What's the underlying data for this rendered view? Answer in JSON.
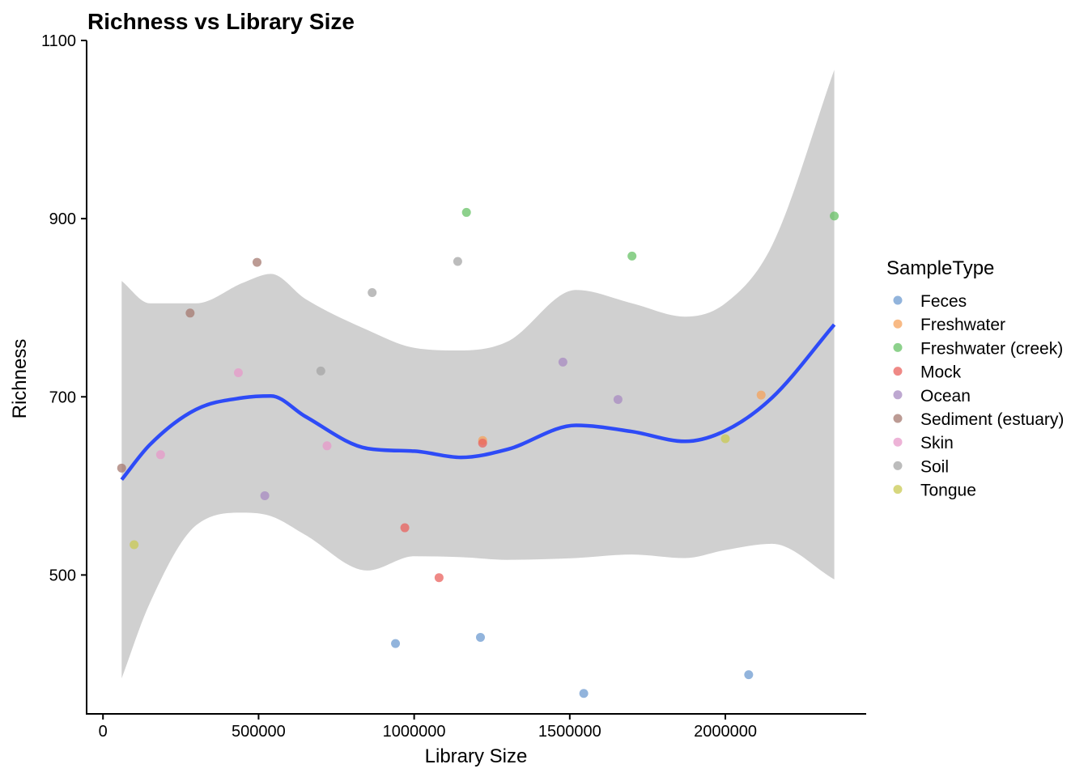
{
  "chart_data": {
    "type": "scatter",
    "title": "Richness vs Library Size",
    "xlabel": "Library Size",
    "ylabel": "Richness",
    "xlim": [
      -50000,
      2450000
    ],
    "ylim": [
      345,
      1100
    ],
    "x_ticks": [
      0,
      500000,
      1000000,
      1500000,
      2000000
    ],
    "x_tick_labels": [
      "0",
      "500000",
      "1000000",
      "1500000",
      "2000000"
    ],
    "y_ticks": [
      500,
      700,
      900,
      1100
    ],
    "y_tick_labels": [
      "500",
      "700",
      "900",
      "1100"
    ],
    "grid": false,
    "legend": {
      "title": "SampleType",
      "position": "right",
      "entries": [
        {
          "name": "Feces",
          "color": "#6E9BD0"
        },
        {
          "name": "Freshwater",
          "color": "#F5A35C"
        },
        {
          "name": "Freshwater (creek)",
          "color": "#67C266"
        },
        {
          "name": "Mock",
          "color": "#E9625E"
        },
        {
          "name": "Ocean",
          "color": "#A88BC2"
        },
        {
          "name": "Sediment (estuary)",
          "color": "#A67A70"
        },
        {
          "name": "Skin",
          "color": "#E79AC9"
        },
        {
          "name": "Soil",
          "color": "#A5A5A5"
        },
        {
          "name": "Tongue",
          "color": "#C9C953"
        }
      ]
    },
    "series": [
      {
        "name": "Feces",
        "points": [
          [
            940000,
            423
          ],
          [
            1213000,
            430
          ],
          [
            1545000,
            367
          ],
          [
            2075000,
            388
          ]
        ]
      },
      {
        "name": "Freshwater",
        "points": [
          [
            1220000,
            651
          ],
          [
            2115000,
            702
          ]
        ]
      },
      {
        "name": "Freshwater (creek)",
        "points": [
          [
            1168000,
            907
          ],
          [
            1700000,
            858
          ],
          [
            2350000,
            903
          ]
        ]
      },
      {
        "name": "Mock",
        "points": [
          [
            970000,
            553
          ],
          [
            1080000,
            497
          ],
          [
            1220000,
            648
          ]
        ]
      },
      {
        "name": "Ocean",
        "points": [
          [
            520000,
            589
          ],
          [
            1478000,
            739
          ],
          [
            1655000,
            697
          ]
        ]
      },
      {
        "name": "Sediment (estuary)",
        "points": [
          [
            60000,
            620
          ],
          [
            280000,
            794
          ],
          [
            495000,
            851
          ]
        ]
      },
      {
        "name": "Skin",
        "points": [
          [
            185000,
            635
          ],
          [
            435000,
            727
          ],
          [
            720000,
            645
          ]
        ]
      },
      {
        "name": "Soil",
        "points": [
          [
            700000,
            729
          ],
          [
            865000,
            817
          ],
          [
            1140000,
            852
          ]
        ]
      },
      {
        "name": "Tongue",
        "points": [
          [
            100000,
            534
          ],
          [
            2000000,
            653
          ]
        ]
      }
    ],
    "smooth": {
      "method": "loess",
      "color": "#2E4BF7",
      "x": [
        60000,
        150000,
        300000,
        450000,
        540000,
        650000,
        850000,
        1000000,
        1150000,
        1300000,
        1520000,
        1700000,
        1870000,
        2000000,
        2150000,
        2350000
      ],
      "y": [
        607,
        646,
        686,
        699,
        701,
        678,
        642,
        639,
        632,
        641,
        668,
        661,
        650,
        662,
        699,
        781
      ],
      "lower": [
        384,
        468,
        556,
        570,
        566,
        545,
        505,
        521,
        520,
        517,
        519,
        523,
        519,
        528,
        535,
        495
      ],
      "upper": [
        830,
        805,
        805,
        828,
        838,
        810,
        775,
        755,
        752,
        762,
        820,
        805,
        790,
        805,
        870,
        1067
      ]
    }
  }
}
